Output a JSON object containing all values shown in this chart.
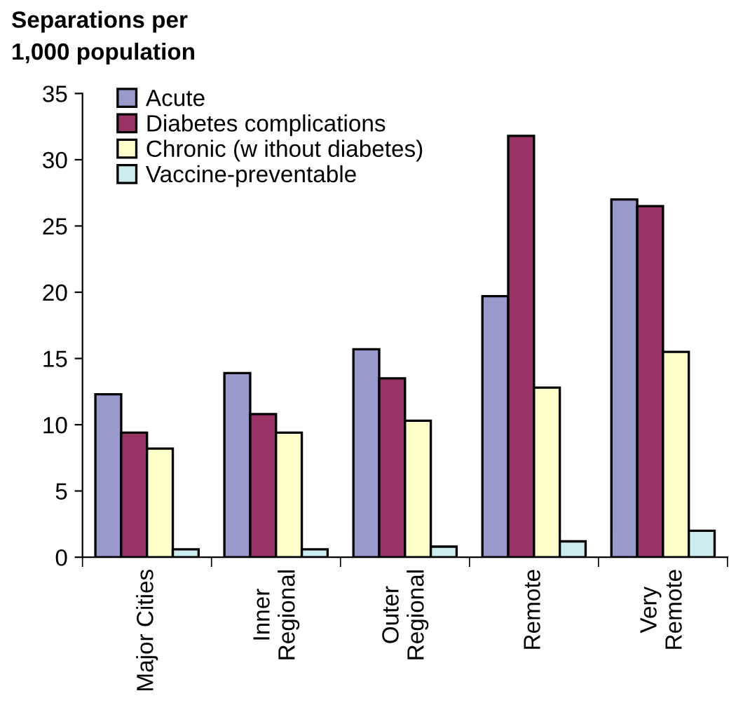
{
  "chart_data": {
    "type": "bar",
    "title": "Separations per\n1,000 population",
    "categories": [
      "Major Cities",
      "Inner\nRegional",
      "Outer\nRegional",
      "Remote",
      "Very\nRemote"
    ],
    "series": [
      {
        "name": "Acute",
        "color": "#9999cc",
        "values": [
          12.3,
          13.9,
          15.7,
          19.7,
          27.0
        ]
      },
      {
        "name": "Diabetes complications",
        "color": "#993366",
        "values": [
          9.4,
          10.8,
          13.5,
          31.8,
          26.5
        ]
      },
      {
        "name": "Chronic (w ithout diabetes)",
        "color": "#ffffcc",
        "values": [
          8.2,
          9.4,
          10.3,
          12.8,
          15.5
        ]
      },
      {
        "name": "Vaccine-preventable",
        "color": "#ccecf0",
        "values": [
          0.6,
          0.6,
          0.8,
          1.2,
          2.0
        ]
      }
    ],
    "ylim": [
      0,
      35
    ],
    "yticks": [
      0,
      5,
      10,
      15,
      20,
      25,
      30,
      35
    ],
    "grid": false,
    "legend": "top left"
  }
}
